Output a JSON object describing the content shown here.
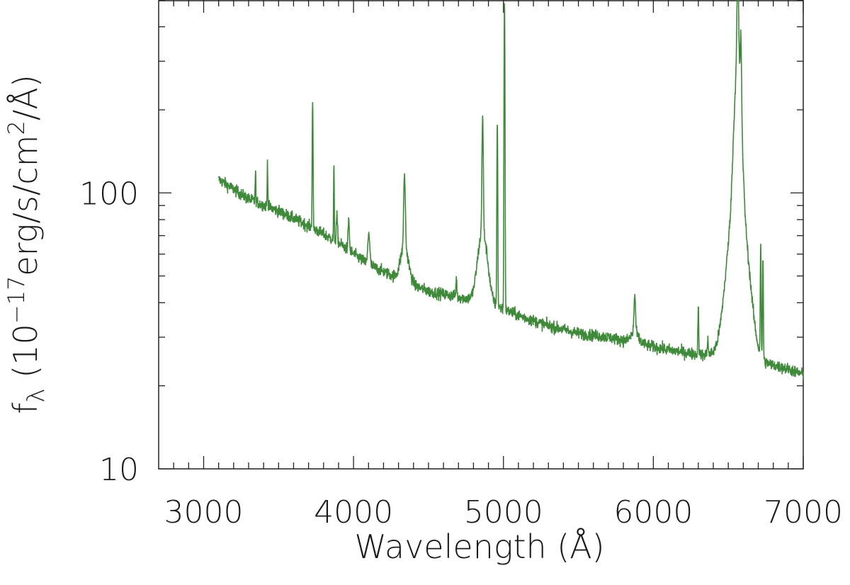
{
  "chart_data": {
    "type": "line",
    "xlabel": "Wavelength (Å)",
    "ylabel": {
      "prefix": "f",
      "prefix_sub": "λ",
      "open": " (10",
      "exp1": "−17",
      "mid": "erg/s/cm",
      "exp2": "2",
      "close": "/Å)"
    },
    "xlim": [
      2700,
      7000
    ],
    "ylim": [
      10,
      500
    ],
    "yscale": "log",
    "x_ticks": [
      3000,
      4000,
      5000,
      6000,
      7000
    ],
    "x_tick_labels": [
      "3000",
      "4000",
      "5000",
      "6000",
      "7000"
    ],
    "y_ticks": [
      10,
      100
    ],
    "y_tick_labels": [
      "10",
      "100"
    ],
    "grid": false,
    "line_color": "#3f8a3a",
    "series": [
      {
        "continuum": [
          [
            3100,
            112
          ],
          [
            3300,
            95
          ],
          [
            3500,
            86
          ],
          [
            3700,
            76
          ],
          [
            3900,
            66
          ],
          [
            4100,
            55
          ],
          [
            4300,
            49
          ],
          [
            4500,
            44
          ],
          [
            4700,
            42
          ],
          [
            4900,
            40
          ],
          [
            5100,
            36
          ],
          [
            5300,
            33
          ],
          [
            5500,
            31
          ],
          [
            5700,
            30
          ],
          [
            5900,
            28.5
          ],
          [
            6100,
            27
          ],
          [
            6300,
            26
          ],
          [
            6500,
            25.5
          ],
          [
            6700,
            24.5
          ],
          [
            6900,
            23
          ],
          [
            7000,
            22
          ]
        ],
        "lines": [
          {
            "center": 3346,
            "sigma": 2,
            "peak": 120
          },
          {
            "center": 3426,
            "sigma": 2,
            "peak": 130
          },
          {
            "center": 3727,
            "sigma": 2.5,
            "peak": 220
          },
          {
            "center": 3869,
            "sigma": 2,
            "peak": 125
          },
          {
            "center": 3889,
            "sigma": 4,
            "peak": 82
          },
          {
            "center": 3968,
            "sigma": 4,
            "peak": 80
          },
          {
            "center": 4102,
            "sigma": 6,
            "peak": 72
          },
          {
            "center": 4102,
            "sigma": 25,
            "peak": 55
          },
          {
            "center": 4340,
            "sigma": 5,
            "peak": 100
          },
          {
            "center": 4340,
            "sigma": 25,
            "peak": 64
          },
          {
            "center": 4686,
            "sigma": 3,
            "peak": 49
          },
          {
            "center": 4861,
            "sigma": 4,
            "peak": 155
          },
          {
            "center": 4861,
            "sigma": 30,
            "peak": 72
          },
          {
            "center": 4959,
            "sigma": 2.5,
            "peak": 185
          },
          {
            "center": 5007,
            "sigma": 2.5,
            "peak": 510
          },
          {
            "center": 5876,
            "sigma": 5,
            "peak": 40
          },
          {
            "center": 5876,
            "sigma": 25,
            "peak": 31
          },
          {
            "center": 6300,
            "sigma": 2.5,
            "peak": 40
          },
          {
            "center": 6363,
            "sigma": 3,
            "peak": 30
          },
          {
            "center": 6563,
            "sigma": 5,
            "peak": 360
          },
          {
            "center": 6563,
            "sigma": 20,
            "peak": 220
          },
          {
            "center": 6563,
            "sigma": 55,
            "peak": 100
          },
          {
            "center": 6584,
            "sigma": 4,
            "peak": 190
          },
          {
            "center": 6716,
            "sigma": 2.5,
            "peak": 64
          },
          {
            "center": 6731,
            "sigma": 2.5,
            "peak": 58
          }
        ],
        "x_start": 3100,
        "x_end": 7000,
        "step": 1.5,
        "noise_fraction": 0.05
      }
    ]
  }
}
